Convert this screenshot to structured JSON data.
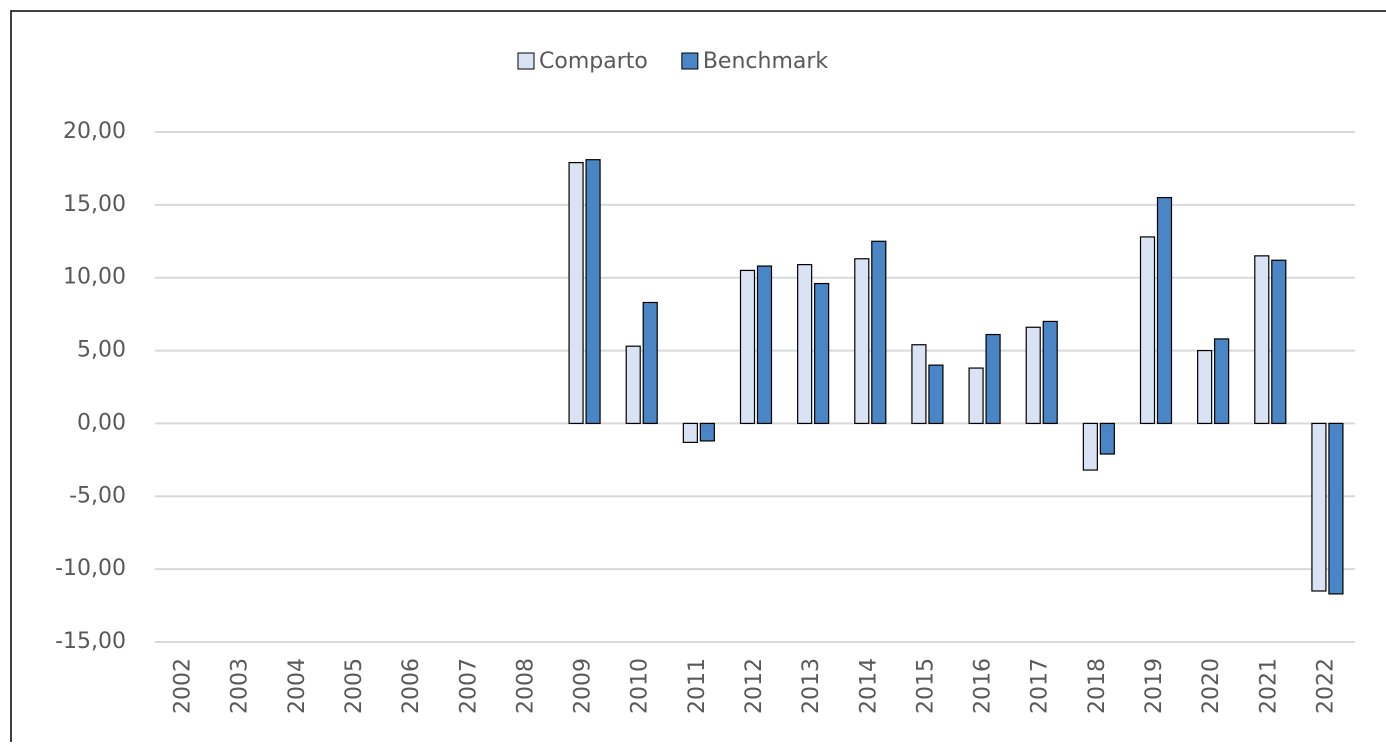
{
  "chart_data": {
    "type": "bar",
    "categories": [
      "2002",
      "2003",
      "2004",
      "2005",
      "2006",
      "2007",
      "2008",
      "2009",
      "2010",
      "2011",
      "2012",
      "2013",
      "2014",
      "2015",
      "2016",
      "2017",
      "2018",
      "2019",
      "2020",
      "2021",
      "2022"
    ],
    "series": [
      {
        "name": "Comparto",
        "color": "#dae3f3",
        "values": [
          null,
          null,
          null,
          null,
          null,
          null,
          null,
          17.9,
          5.3,
          -1.3,
          10.5,
          10.9,
          11.3,
          5.4,
          3.8,
          6.6,
          -3.2,
          12.8,
          5.0,
          11.5,
          -11.5
        ]
      },
      {
        "name": "Benchmark",
        "color": "#4a86c6",
        "values": [
          null,
          null,
          null,
          null,
          null,
          null,
          null,
          18.1,
          8.3,
          -1.2,
          10.8,
          9.6,
          12.5,
          4.0,
          6.1,
          7.0,
          -2.1,
          15.5,
          5.8,
          11.2,
          -11.7
        ]
      }
    ],
    "ylim": [
      -15,
      20
    ],
    "yticks": [
      {
        "value": -15,
        "label": "-15,00"
      },
      {
        "value": -10,
        "label": "-10,00"
      },
      {
        "value": -5,
        "label": "-5,00"
      },
      {
        "value": 0,
        "label": "0,00"
      },
      {
        "value": 5,
        "label": "5,00"
      },
      {
        "value": 10,
        "label": "10,00"
      },
      {
        "value": 15,
        "label": "15,00"
      },
      {
        "value": 20,
        "label": "20,00"
      }
    ],
    "grid": true,
    "legend": "top"
  }
}
